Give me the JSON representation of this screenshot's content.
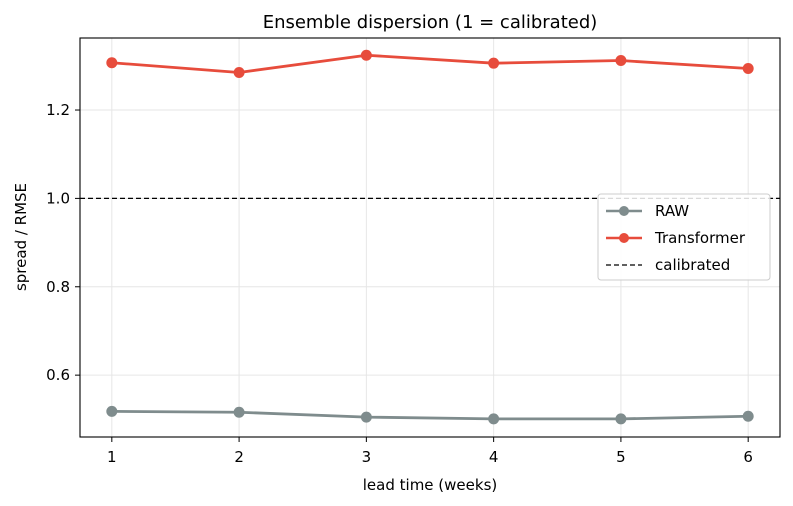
{
  "chart_data": {
    "type": "line",
    "title": "Ensemble dispersion (1 = calibrated)",
    "xlabel": "lead time (weeks)",
    "ylabel": "spread / RMSE",
    "x": [
      1,
      2,
      3,
      4,
      5,
      6
    ],
    "xticks": [
      "1",
      "2",
      "3",
      "4",
      "5",
      "6"
    ],
    "yticks": [
      0.6,
      0.8,
      1.0,
      1.2
    ],
    "ytick_labels": [
      "0.6",
      "0.8",
      "1.0",
      "1.2"
    ],
    "xlim": [
      0.75,
      6.25
    ],
    "ylim": [
      0.46,
      1.363
    ],
    "grid": true,
    "legend_position": "right",
    "series": [
      {
        "name": "RAW",
        "color": "#7f8c8d",
        "marker": "circle",
        "values": [
          0.518,
          0.516,
          0.505,
          0.501,
          0.501,
          0.507
        ]
      },
      {
        "name": "Transformer",
        "color": "#e74c3c",
        "marker": "circle",
        "values": [
          1.307,
          1.285,
          1.324,
          1.306,
          1.312,
          1.294
        ]
      }
    ],
    "reference_line": {
      "name": "calibrated",
      "value": 1.0,
      "style": "dashed",
      "color": "#000000"
    }
  }
}
